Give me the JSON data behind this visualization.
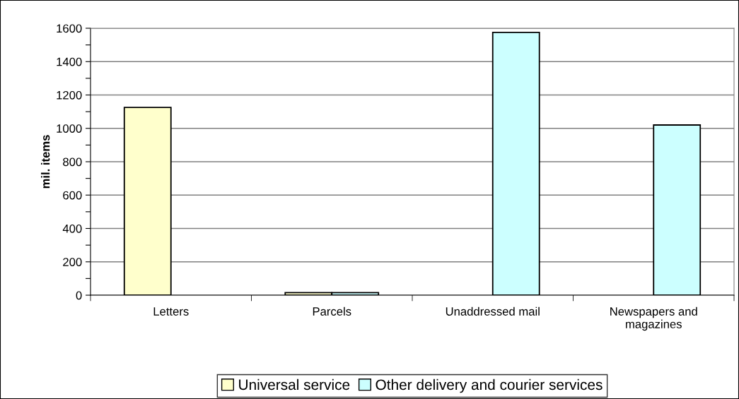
{
  "chart_data": {
    "type": "bar",
    "ylabel": "mil. items",
    "categories": [
      "Letters",
      "Parcels",
      "Unaddressed mail",
      "Newspapers and\nmagazines"
    ],
    "series": [
      {
        "name": "Universal service",
        "color": "#ffffcc",
        "values": [
          1125,
          15,
          null,
          null
        ]
      },
      {
        "name": "Other delivery and courier services",
        "color": "#ccffff",
        "values": [
          null,
          15,
          1575,
          1020
        ]
      }
    ],
    "ylim": [
      0,
      1600
    ],
    "yticks": [
      0,
      {
        "value": 100,
        "label": null
      },
      200,
      {
        "value": 300,
        "label": null
      },
      400,
      {
        "value": 500,
        "label": null
      },
      600,
      {
        "value": 700,
        "label": null
      },
      800,
      {
        "value": 900,
        "label": null
      },
      1000,
      {
        "value": 1100,
        "label": null
      },
      1200,
      {
        "value": 1300,
        "label": null
      },
      1400,
      {
        "value": 1500,
        "label": null
      },
      1600
    ],
    "grid": "y",
    "legend": "bottom"
  }
}
